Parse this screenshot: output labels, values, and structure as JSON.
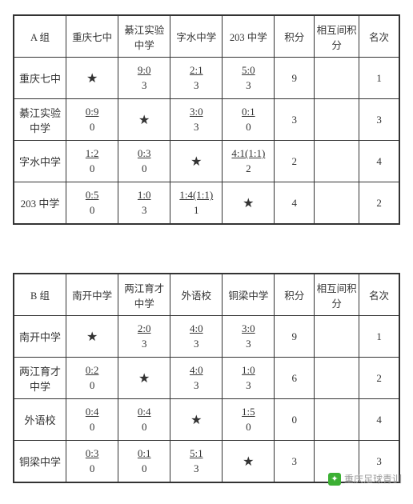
{
  "tables": [
    {
      "group_label": "A 组",
      "teams": [
        "重庆七中",
        "綦江实验中学",
        "字水中学",
        "203 中学"
      ],
      "col_points": "积分",
      "col_mutual": "相互间积分",
      "col_rank": "名次",
      "rows": [
        {
          "team": "重庆七中",
          "cells": [
            {
              "star": true
            },
            {
              "score": "9:0",
              "pts": "3"
            },
            {
              "score": "2:1",
              "pts": "3"
            },
            {
              "score": "5:0",
              "pts": "3"
            }
          ],
          "points": "9",
          "mutual": "",
          "rank": "1"
        },
        {
          "team": "綦江实验中学",
          "cells": [
            {
              "score": "0:9",
              "pts": "0"
            },
            {
              "star": true
            },
            {
              "score": "3:0",
              "pts": "3"
            },
            {
              "score": "0:1",
              "pts": "0"
            }
          ],
          "points": "3",
          "mutual": "",
          "rank": "3"
        },
        {
          "team": "字水中学",
          "cells": [
            {
              "score": "1:2",
              "pts": "0"
            },
            {
              "score": "0:3",
              "pts": "0"
            },
            {
              "star": true
            },
            {
              "score": "4:1(1:1)",
              "pts": "2"
            }
          ],
          "points": "2",
          "mutual": "",
          "rank": "4"
        },
        {
          "team": "203 中学",
          "cells": [
            {
              "score": "0:5",
              "pts": "0"
            },
            {
              "score": "1:0",
              "pts": "3"
            },
            {
              "score": "1:4(1:1)",
              "pts": "1"
            },
            {
              "star": true
            }
          ],
          "points": "4",
          "mutual": "",
          "rank": "2"
        }
      ]
    },
    {
      "group_label": "B 组",
      "teams": [
        "南开中学",
        "两江育才中学",
        "外语校",
        "铜梁中学"
      ],
      "col_points": "积分",
      "col_mutual": "相互间积分",
      "col_rank": "名次",
      "rows": [
        {
          "team": "南开中学",
          "cells": [
            {
              "star": true
            },
            {
              "score": "2:0",
              "pts": "3"
            },
            {
              "score": "4:0",
              "pts": "3"
            },
            {
              "score": "3:0",
              "pts": "3"
            }
          ],
          "points": "9",
          "mutual": "",
          "rank": "1"
        },
        {
          "team": "两江育才中学",
          "cells": [
            {
              "score": "0:2",
              "pts": "0"
            },
            {
              "star": true
            },
            {
              "score": "4:0",
              "pts": "3"
            },
            {
              "score": "1:0",
              "pts": "3"
            }
          ],
          "points": "6",
          "mutual": "",
          "rank": "2"
        },
        {
          "team": "外语校",
          "cells": [
            {
              "score": "0:4",
              "pts": "0"
            },
            {
              "score": "0:4",
              "pts": "0"
            },
            {
              "star": true
            },
            {
              "score": "1:5",
              "pts": "0"
            }
          ],
          "points": "0",
          "mutual": "",
          "rank": "4"
        },
        {
          "team": "铜梁中学",
          "cells": [
            {
              "score": "0:3",
              "pts": "0"
            },
            {
              "score": "0:1",
              "pts": "0"
            },
            {
              "score": "5:1",
              "pts": "3"
            },
            {
              "star": true
            }
          ],
          "points": "3",
          "mutual": "",
          "rank": "3"
        }
      ]
    }
  ],
  "watermark": "重庆足球青训",
  "colors": {
    "border": "#333333",
    "text": "#333333",
    "background": "#ffffff",
    "watermark": "#999999",
    "wm_icon_bg": "#3cb034"
  }
}
